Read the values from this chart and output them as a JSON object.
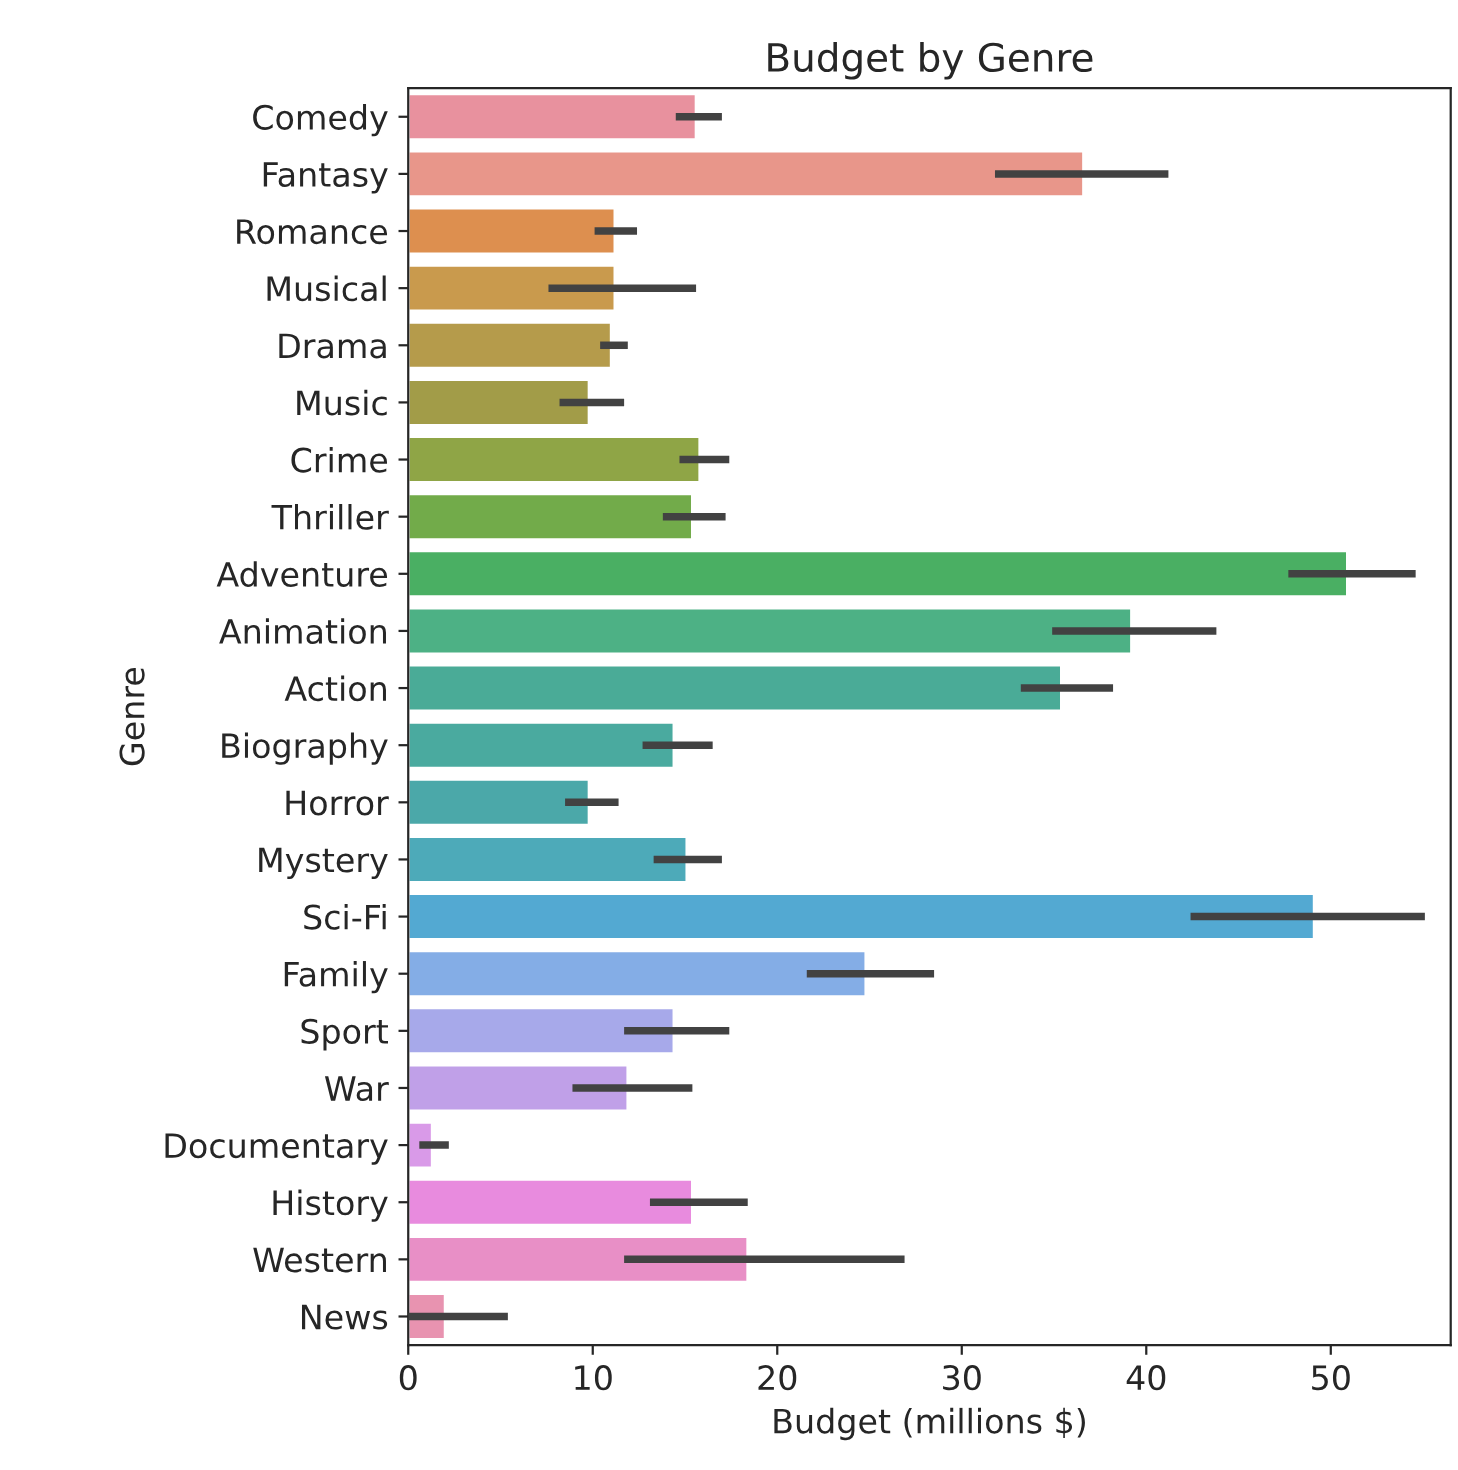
{
  "chart_data": {
    "type": "bar",
    "orientation": "horizontal",
    "title": "Budget by Genre",
    "xlabel": "Budget (millions $)",
    "ylabel": "Genre",
    "categories": [
      "Comedy",
      "Fantasy",
      "Romance",
      "Musical",
      "Drama",
      "Music",
      "Crime",
      "Thriller",
      "Adventure",
      "Animation",
      "Action",
      "Biography",
      "Horror",
      "Mystery",
      "Sci-Fi",
      "Family",
      "Sport",
      "War",
      "Documentary",
      "History",
      "Western",
      "News"
    ],
    "values": [
      15.6,
      36.6,
      11.2,
      11.2,
      11.0,
      9.8,
      15.8,
      15.4,
      50.9,
      39.2,
      35.4,
      14.4,
      9.8,
      15.1,
      49.1,
      24.8,
      14.4,
      11.9,
      1.3,
      15.4,
      18.4,
      2.0
    ],
    "errors": [
      [
        14.5,
        17.0
      ],
      [
        31.8,
        41.2
      ],
      [
        10.1,
        12.4
      ],
      [
        7.6,
        15.6
      ],
      [
        10.4,
        11.9
      ],
      [
        8.2,
        11.7
      ],
      [
        14.7,
        17.4
      ],
      [
        13.8,
        17.2
      ],
      [
        47.7,
        54.6
      ],
      [
        34.9,
        43.8
      ],
      [
        33.2,
        38.2
      ],
      [
        12.7,
        16.5
      ],
      [
        8.5,
        11.4
      ],
      [
        13.3,
        17.0
      ],
      [
        42.4,
        55.1
      ],
      [
        21.6,
        28.5
      ],
      [
        11.7,
        17.4
      ],
      [
        8.9,
        15.4
      ],
      [
        0.6,
        2.2
      ],
      [
        13.1,
        18.4
      ],
      [
        11.7,
        26.9
      ],
      [
        0.0,
        5.4
      ]
    ],
    "colors": [
      "#e8919e",
      "#e8968a",
      "#dd8f4f",
      "#c99a4d",
      "#b59b4b",
      "#a29c48",
      "#8fa546",
      "#72ab4a",
      "#4aaf63",
      "#4db185",
      "#4aab97",
      "#4aaa9f",
      "#4ba8a9",
      "#4daab9",
      "#53a9d2",
      "#84ade6",
      "#a7a9ea",
      "#c0a0e8",
      "#d99ae8",
      "#e88bde",
      "#e88fc6",
      "#e893b0"
    ],
    "xlim": [
      0,
      56.5
    ],
    "xticks": [
      0,
      10,
      20,
      30,
      40,
      50
    ],
    "grid": false,
    "legend": false
  }
}
